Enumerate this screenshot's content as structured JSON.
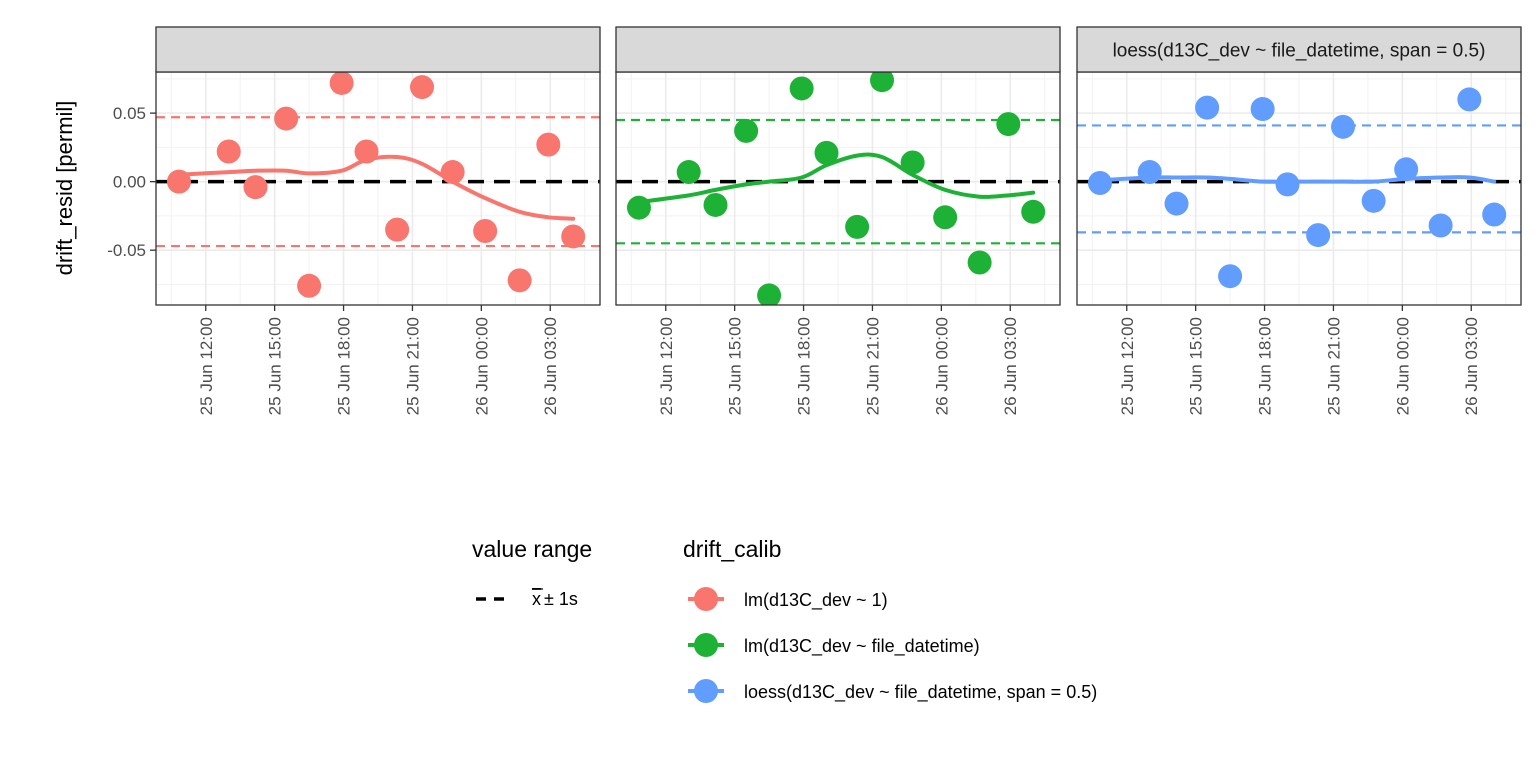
{
  "chart_data": {
    "type": "scatter",
    "ylabel": "drift_resid [permil]",
    "y_ticks": [
      -0.05,
      0.0,
      0.05
    ],
    "y_tick_labels": [
      "-0.05",
      "0.00",
      "0.05"
    ],
    "ylim": [
      -0.09,
      0.08
    ],
    "x_ticks": [
      "2024-06-25T12:00",
      "2024-06-25T15:00",
      "2024-06-25T18:00",
      "2024-06-25T21:00",
      "2024-06-26T00:00",
      "2024-06-26T03:00"
    ],
    "x_tick_labels": [
      "25 Jun 12:00",
      "25 Jun 15:00",
      "25 Jun 18:00",
      "25 Jun 21:00",
      "26 Jun 00:00",
      "26 Jun 03:00"
    ],
    "xlim": [
      "2024-06-25T09:50",
      "2024-06-26T05:10"
    ],
    "grid": true,
    "legend_position": "bottom",
    "x": [
      "2024-06-25T10:50",
      "2024-06-25T13:00",
      "2024-06-25T14:10",
      "2024-06-25T15:30",
      "2024-06-25T16:30",
      "2024-06-25T17:55",
      "2024-06-25T19:00",
      "2024-06-25T20:20",
      "2024-06-25T21:25",
      "2024-06-25T22:45",
      "2024-06-26T00:10",
      "2024-06-26T01:40",
      "2024-06-26T02:55",
      "2024-06-26T04:00"
    ],
    "panels": [
      {
        "strip": "lm(d13C_dev ~ 1)",
        "color": "#F8766D",
        "points": [
          0.0,
          0.022,
          -0.004,
          0.046,
          -0.076,
          0.072,
          0.022,
          -0.035,
          0.069,
          0.007,
          -0.036,
          -0.072,
          0.027,
          -0.04
        ],
        "smooth": [
          0.005,
          0.007,
          0.008,
          0.008,
          0.006,
          0.008,
          0.016,
          0.018,
          0.013,
          0.0,
          -0.012,
          -0.022,
          -0.026,
          -0.027
        ],
        "mean": 0.0,
        "range": [
          -0.047,
          0.047
        ]
      },
      {
        "strip": "lm(d13C_dev ~ file_datetime)",
        "color": "#1DB136",
        "points": [
          -0.019,
          0.007,
          -0.017,
          0.037,
          -0.083,
          0.068,
          0.021,
          -0.033,
          0.074,
          0.014,
          -0.026,
          -0.059,
          0.042,
          -0.022
        ],
        "smooth": [
          -0.015,
          -0.01,
          -0.006,
          -0.002,
          0.0,
          0.003,
          0.012,
          0.019,
          0.018,
          0.005,
          -0.006,
          -0.011,
          -0.01,
          -0.008
        ],
        "mean": 0.0,
        "range": [
          -0.045,
          0.045
        ]
      },
      {
        "strip": "loess(d13C_dev ~ file_datetime, span = 0.5)",
        "color": "#619CFF",
        "points": [
          -0.001,
          0.007,
          -0.016,
          0.054,
          -0.069,
          0.053,
          -0.002,
          -0.039,
          0.04,
          -0.014,
          0.009,
          -0.032,
          0.06,
          -0.024
        ],
        "smooth": [
          0.001,
          0.003,
          0.003,
          0.003,
          0.002,
          0.0,
          0.0,
          0.0,
          0.0,
          0.0,
          0.002,
          0.003,
          0.003,
          0.0
        ],
        "mean": 0.0,
        "range": [
          -0.037,
          0.041
        ]
      }
    ],
    "legends": {
      "value_range": {
        "title": "value range",
        "label_main": "x",
        "label_rest": "± 1s"
      },
      "drift_calib": {
        "title": "drift_calib",
        "entries": [
          {
            "label": "lm(d13C_dev ~ 1)",
            "color": "#F8766D"
          },
          {
            "label": "lm(d13C_dev ~ file_datetime)",
            "color": "#1DB136"
          },
          {
            "label": "loess(d13C_dev ~ file_datetime, span = 0.5)",
            "color": "#619CFF"
          }
        ]
      }
    }
  }
}
